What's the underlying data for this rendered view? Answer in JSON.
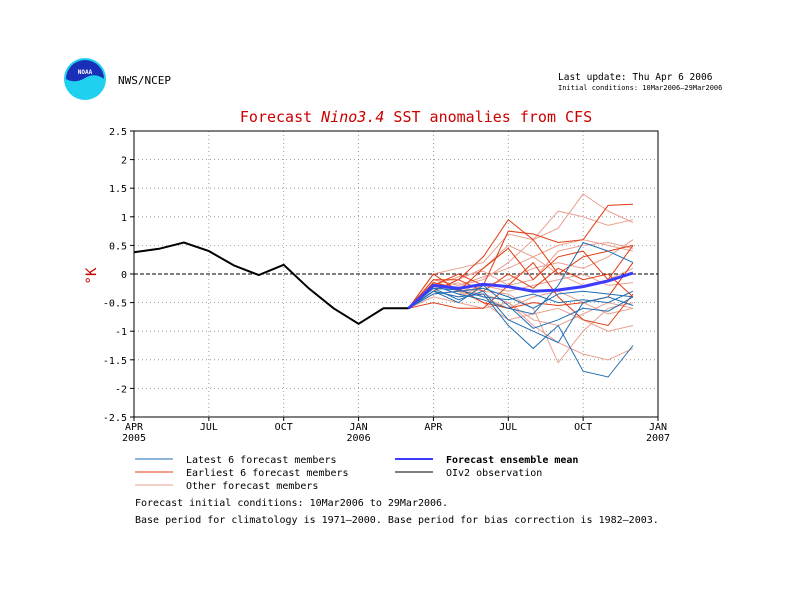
{
  "header": {
    "agency": "NWS/NCEP",
    "logo_text": "NOAA",
    "last_update": "Last update: Thu Apr 6 2006",
    "initial_conditions_short": "Initial conditions: 10Mar2006–29Mar2006"
  },
  "footer": {
    "line1": "Forecast initial conditions: 10Mar2006 to 29Mar2006.",
    "line2": "Base period for climatology is 1971–2000. Base period for bias correction is 1982–2003."
  },
  "colors": {
    "observation": "#000000",
    "latest": "#1e6eb4",
    "earliest": "#e03c14",
    "other": "#e8a090",
    "mean": "#3c3cff",
    "title": "#cc0000"
  },
  "chart_data": {
    "type": "line",
    "title_prefix": "Forecast ",
    "title_italic": "Nino3.4",
    "title_suffix": " SST anomalies from CFS",
    "ylabel": "°K",
    "ylim": [
      -2.5,
      2.5
    ],
    "yticks": [
      2.5,
      2,
      1.5,
      1,
      0.5,
      0,
      -0.5,
      -1,
      -1.5,
      -2,
      -2.5
    ],
    "ytick_labels": [
      "2.5",
      "2",
      "1.5",
      "1",
      "0.5",
      "0",
      "-0.5",
      "-1",
      "-1.5",
      "-2",
      "-2.5"
    ],
    "xlim": [
      "2005-04",
      "2007-01"
    ],
    "xticks": [
      {
        "month": "2005-04",
        "label": "APR",
        "year": "2005"
      },
      {
        "month": "2005-07",
        "label": "JUL",
        "year": ""
      },
      {
        "month": "2005-10",
        "label": "OCT",
        "year": ""
      },
      {
        "month": "2006-01",
        "label": "JAN",
        "year": "2006"
      },
      {
        "month": "2006-04",
        "label": "APR",
        "year": ""
      },
      {
        "month": "2006-07",
        "label": "JUL",
        "year": ""
      },
      {
        "month": "2006-10",
        "label": "OCT",
        "year": ""
      },
      {
        "month": "2007-01",
        "label": "JAN",
        "year": "2007"
      }
    ],
    "grid": true,
    "zero_line": true,
    "legend": [
      {
        "key": "latest",
        "label": "Latest 6 forecast members",
        "color": "#1e6eb4",
        "bold": false
      },
      {
        "key": "mean",
        "label": "Forecast ensemble mean",
        "color": "#3c3cff",
        "bold": true
      },
      {
        "key": "earliest",
        "label": "Earliest 6 forecast members",
        "color": "#e03c14",
        "bold": false
      },
      {
        "key": "observation",
        "label": "OIv2 observation",
        "color": "#000000",
        "bold": false
      },
      {
        "key": "other",
        "label": "Other forecast members",
        "color": "#e8a090",
        "bold": false
      }
    ],
    "observation": {
      "x": [
        "2005-04",
        "2005-05",
        "2005-06",
        "2005-07",
        "2005-08",
        "2005-09",
        "2005-10",
        "2005-11",
        "2005-12",
        "2006-01",
        "2006-02",
        "2006-03"
      ],
      "y": [
        0.38,
        0.44,
        0.55,
        0.4,
        0.15,
        -0.02,
        0.16,
        -0.25,
        -0.6,
        -0.87,
        -0.6,
        -0.6
      ]
    },
    "forecast_x": [
      "2006-03",
      "2006-04",
      "2006-05",
      "2006-06",
      "2006-07",
      "2006-08",
      "2006-09",
      "2006-10",
      "2006-11",
      "2006-12"
    ],
    "ensemble_mean": [
      -0.6,
      -0.2,
      -0.25,
      -0.18,
      -0.22,
      -0.3,
      -0.28,
      -0.22,
      -0.12,
      0.02
    ],
    "latest_members": [
      [
        -0.6,
        -0.3,
        -0.4,
        -0.35,
        -0.9,
        -1.3,
        -0.9,
        -1.7,
        -1.8,
        -1.25
      ],
      [
        -0.6,
        -0.25,
        -0.45,
        -0.3,
        -0.8,
        -1.0,
        -1.2,
        -0.5,
        -0.4,
        -0.55
      ],
      [
        -0.6,
        -0.35,
        -0.3,
        -0.25,
        -0.4,
        -0.6,
        -0.35,
        -0.3,
        -0.35,
        -0.4
      ],
      [
        -0.6,
        -0.2,
        -0.35,
        -0.45,
        -0.6,
        -0.7,
        -0.2,
        0.55,
        0.4,
        0.2
      ],
      [
        -0.6,
        -0.3,
        -0.5,
        -0.2,
        -0.55,
        -0.95,
        -0.8,
        -0.6,
        -0.65,
        -0.4
      ],
      [
        -0.6,
        -0.25,
        -0.28,
        -0.4,
        -0.45,
        -0.35,
        -0.5,
        -0.45,
        -0.5,
        -0.3
      ]
    ],
    "earliest_members": [
      [
        -0.6,
        -0.1,
        -0.1,
        0.3,
        0.95,
        0.6,
        0.0,
        0.3,
        0.4,
        0.5
      ],
      [
        -0.6,
        -0.2,
        0.0,
        -0.2,
        0.75,
        0.7,
        0.55,
        0.6,
        1.2,
        1.22
      ],
      [
        -0.6,
        -0.5,
        -0.6,
        -0.6,
        -0.2,
        0.2,
        -0.4,
        -0.8,
        -0.9,
        -0.35
      ],
      [
        -0.6,
        0.0,
        -0.3,
        0.1,
        0.45,
        -0.1,
        0.3,
        0.4,
        -0.1,
        0.5
      ],
      [
        -0.6,
        -0.15,
        -0.25,
        -0.5,
        -0.6,
        -0.5,
        -0.55,
        -0.5,
        -0.4,
        0.2
      ],
      [
        -0.6,
        -0.3,
        -0.1,
        -0.3,
        0.0,
        -0.25,
        0.1,
        -0.1,
        0.0,
        -0.4
      ]
    ],
    "other_members": [
      [
        -0.6,
        0.0,
        0.1,
        0.2,
        0.7,
        0.6,
        0.8,
        1.4,
        1.1,
        0.9
      ],
      [
        -0.6,
        -0.1,
        -0.2,
        -0.1,
        0.2,
        0.6,
        1.1,
        1.0,
        0.85,
        0.95
      ],
      [
        -0.6,
        -0.4,
        -0.5,
        -0.6,
        -0.5,
        -0.9,
        -1.2,
        -1.4,
        -1.5,
        -1.3
      ],
      [
        -0.6,
        -0.15,
        -0.25,
        -0.3,
        -0.35,
        -0.6,
        -1.55,
        -1.0,
        -0.6,
        -0.5
      ],
      [
        -0.6,
        -0.3,
        -0.1,
        0.1,
        0.5,
        0.3,
        0.5,
        0.6,
        0.5,
        0.4
      ],
      [
        -0.6,
        -0.2,
        -0.35,
        -0.2,
        -0.1,
        0.1,
        0.2,
        0.1,
        0.3,
        0.6
      ],
      [
        -0.6,
        -0.25,
        -0.15,
        -0.4,
        -0.6,
        -0.4,
        -0.3,
        -0.5,
        -0.7,
        -0.6
      ],
      [
        -0.6,
        -0.1,
        -0.2,
        -0.05,
        0.1,
        0.3,
        0.0,
        -0.2,
        -0.1,
        0.1
      ],
      [
        -0.6,
        -0.35,
        -0.3,
        -0.5,
        -0.8,
        -0.7,
        -0.6,
        -0.8,
        -1.0,
        -0.9
      ],
      [
        -0.6,
        -0.2,
        -0.05,
        0.05,
        -0.2,
        -0.1,
        0.4,
        0.5,
        0.55,
        0.45
      ],
      [
        -0.6,
        -0.3,
        -0.4,
        -0.2,
        -0.3,
        -0.2,
        -0.1,
        0.0,
        -0.2,
        -0.15
      ],
      [
        -0.6,
        -0.15,
        -0.3,
        -0.35,
        -0.5,
        -0.8,
        -0.9,
        -0.7,
        -0.5,
        -0.6
      ]
    ]
  }
}
